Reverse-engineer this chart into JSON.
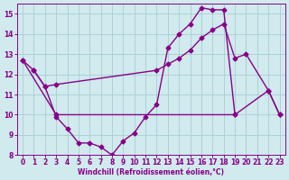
{
  "bg_color": "#d0eaed",
  "grid_color": "#a8cdd4",
  "line_color": "#880088",
  "line1_x": [
    0,
    1,
    2,
    3,
    12,
    13,
    14,
    15,
    16,
    17,
    18,
    19,
    20,
    22,
    23
  ],
  "line1_y": [
    12.7,
    12.2,
    11.4,
    11.5,
    12.2,
    12.5,
    12.8,
    13.2,
    13.8,
    14.2,
    14.5,
    12.8,
    13.0,
    11.2,
    10.0
  ],
  "line2_x": [
    1,
    2,
    3,
    4,
    5,
    6,
    7,
    8,
    9,
    10,
    11,
    12,
    13,
    14,
    15,
    16,
    17,
    18,
    19
  ],
  "line2_y": [
    12.2,
    11.4,
    9.9,
    9.3,
    8.6,
    8.6,
    8.4,
    8.0,
    8.7,
    9.1,
    9.9,
    10.5,
    13.3,
    14.0,
    14.5,
    15.3,
    15.2,
    15.2,
    10.0
  ],
  "line3_x": [
    0,
    3,
    19,
    22,
    23
  ],
  "line3_y": [
    12.7,
    10.0,
    10.0,
    11.2,
    10.0
  ],
  "xlabel": "Windchill (Refroidissement éolien,°C)",
  "xlim": [
    -0.5,
    23.5
  ],
  "ylim": [
    8,
    15.5
  ],
  "yticks": [
    8,
    9,
    10,
    11,
    12,
    13,
    14,
    15
  ],
  "xticks": [
    0,
    1,
    2,
    3,
    4,
    5,
    6,
    7,
    8,
    9,
    10,
    11,
    12,
    13,
    14,
    15,
    16,
    17,
    18,
    19,
    20,
    21,
    22,
    23
  ],
  "markersize": 2.5,
  "linewidth": 1.0
}
